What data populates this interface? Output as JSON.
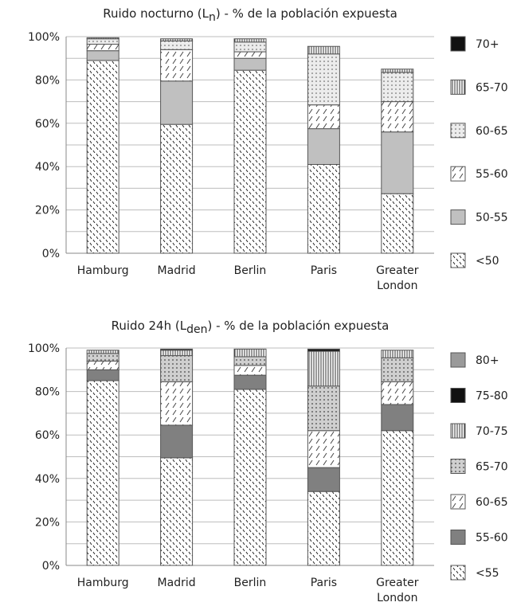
{
  "chart_data": [
    {
      "type": "bar",
      "stacked": true,
      "title": "Ruido nocturno (L",
      "title_sub": "n",
      "title_suffix": ") - % de la población expuesta",
      "xlabel": "",
      "ylabel": "",
      "ylim": [
        0,
        100
      ],
      "yticks": [
        "0%",
        "20%",
        "40%",
        "60%",
        "80%",
        "100%"
      ],
      "categories": [
        "Hamburg",
        "Madrid",
        "Berlin",
        "Paris",
        "Greater London"
      ],
      "legend_position": "right",
      "series": [
        {
          "name": "<50",
          "pattern": "tick-dense",
          "color": "#ffffff",
          "values": [
            89,
            59.5,
            84.5,
            41,
            27.5
          ]
        },
        {
          "name": "50-55",
          "pattern": "solid",
          "color": "#c0c0c0",
          "values": [
            4.5,
            20,
            5.5,
            16.5,
            28.5
          ]
        },
        {
          "name": "55-60",
          "pattern": "slash",
          "color": "#ffffff",
          "values": [
            3,
            14.5,
            3,
            11,
            14
          ]
        },
        {
          "name": "60-65",
          "pattern": "dots",
          "color": "#e6e6e6",
          "values": [
            2.5,
            4,
            4.5,
            23.5,
            13.5
          ]
        },
        {
          "name": "65-70",
          "pattern": "vlines",
          "color": "#ffffff",
          "values": [
            0.5,
            1,
            1.5,
            3.5,
            1.5
          ]
        },
        {
          "name": "70+",
          "pattern": "solid",
          "color": "#111111",
          "values": [
            0,
            0,
            0,
            0,
            0
          ]
        }
      ]
    },
    {
      "type": "bar",
      "stacked": true,
      "title": "Ruido 24h (L",
      "title_sub": "den",
      "title_suffix": ") - % de la población expuesta",
      "xlabel": "",
      "ylabel": "",
      "ylim": [
        0,
        100
      ],
      "yticks": [
        "0%",
        "20%",
        "40%",
        "60%",
        "80%",
        "100%"
      ],
      "categories": [
        "Hamburg",
        "Madrid",
        "Berlin",
        "Paris",
        "Greater London"
      ],
      "legend_position": "right",
      "series": [
        {
          "name": "<55",
          "pattern": "tick-dense",
          "color": "#ffffff",
          "values": [
            85,
            49.5,
            81,
            34,
            62
          ]
        },
        {
          "name": "55-60",
          "pattern": "solid",
          "color": "#808080",
          "values": [
            5,
            15,
            6.5,
            11,
            12
          ]
        },
        {
          "name": "60-65",
          "pattern": "slash",
          "color": "#ffffff",
          "values": [
            4,
            20,
            4.5,
            17,
            10.5
          ]
        },
        {
          "name": "65-70",
          "pattern": "dots",
          "color": "#cfcfcf",
          "values": [
            3.5,
            12,
            4,
            20.5,
            11
          ]
        },
        {
          "name": "70-75",
          "pattern": "vlines",
          "color": "#ffffff",
          "values": [
            1.5,
            2.5,
            3.5,
            16,
            3.5
          ]
        },
        {
          "name": "75-80",
          "pattern": "solid",
          "color": "#111111",
          "values": [
            0,
            0.5,
            0,
            1,
            0
          ]
        },
        {
          "name": "80+",
          "pattern": "solid",
          "color": "#9a9a9a",
          "values": [
            0,
            0,
            0,
            0,
            0
          ]
        }
      ]
    }
  ]
}
